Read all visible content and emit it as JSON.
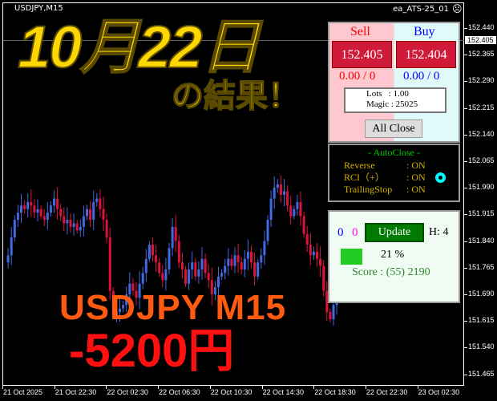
{
  "header": {
    "symbol": "USDJPY,M15",
    "ea_name": "ea_ATS-25_01",
    "ea_status_icon": "sad-face-icon"
  },
  "overlay": {
    "date": "10月22日",
    "result": "の結果！",
    "pair": "USDJPY M15",
    "pnl": "-5200円"
  },
  "price_axis": {
    "labels": [
      "152.440",
      "152.365",
      "152.290",
      "152.215",
      "152.140",
      "152.065",
      "151.990",
      "151.915",
      "151.840",
      "151.765",
      "151.690",
      "151.615",
      "151.540",
      "151.465"
    ],
    "current_price": "152.405"
  },
  "time_axis": {
    "labels": [
      "21 Oct 2025",
      "21 Oct 22:30",
      "22 Oct 02:30",
      "22 Oct 06:30",
      "22 Oct 10:30",
      "22 Oct 14:30",
      "22 Oct 18:30",
      "22 Oct 22:30",
      "23 Oct 02:30"
    ]
  },
  "trade_panel": {
    "sell_label": "Sell",
    "buy_label": "Buy",
    "sell_price": "152.405",
    "buy_price": "152.404",
    "sell_position": "0.00 / 0",
    "buy_position": "0.00 / 0",
    "lots": "Lots   : 1.00",
    "magic": "Magic : 25025",
    "all_close": "All Close"
  },
  "auto_close": {
    "title": "- AutoClose -",
    "rows": [
      {
        "label": "Reverse",
        "value": ": ON"
      },
      {
        "label": "RCI（+）",
        "value": ": ON"
      },
      {
        "label": "TrailingStop",
        "value": ": ON"
      }
    ]
  },
  "score_panel": {
    "count_a": "0",
    "count_b": "0",
    "update": "Update",
    "h": "H: 4",
    "progress_text": "21 %",
    "progress": 0.21,
    "score": "Score : (55) 2190"
  },
  "colors": {
    "bull": "#4169e1",
    "bear": "#dc143c",
    "overlay_yellow": "#ffd700",
    "overlay_orange": "#ff5a10",
    "overlay_red": "#ff1010"
  },
  "chart_data": {
    "type": "candlestick",
    "closes": [
      151.78,
      151.8,
      151.85,
      151.9,
      151.92,
      151.94,
      151.93,
      151.95,
      151.94,
      151.92,
      151.93,
      151.91,
      151.9,
      151.92,
      151.94,
      151.96,
      151.93,
      151.91,
      151.89,
      151.9,
      151.88,
      151.89,
      151.87,
      151.88,
      151.91,
      151.93,
      151.9,
      151.95,
      151.96,
      151.93,
      151.9,
      151.85,
      151.7,
      151.63,
      151.64,
      151.65,
      151.66,
      151.69,
      151.72,
      151.7,
      151.68,
      151.72,
      151.75,
      151.79,
      151.83,
      151.8,
      151.78,
      151.75,
      151.73,
      151.76,
      151.82,
      151.88,
      151.84,
      151.78,
      151.76,
      151.72,
      151.76,
      151.78,
      151.74,
      151.76,
      151.79,
      151.75,
      151.73,
      151.69,
      151.71,
      151.74,
      151.75,
      151.77,
      151.79,
      151.77,
      151.8,
      151.78,
      151.76,
      151.79,
      151.81,
      151.78,
      151.74,
      151.78,
      151.8,
      151.84,
      151.9,
      151.96,
      151.99,
      152.0,
      151.97,
      151.98,
      151.94,
      151.91,
      151.93,
      151.95,
      151.91,
      151.86,
      151.83,
      151.8,
      151.81,
      151.79,
      151.77,
      151.7,
      151.64,
      151.62,
      151.66,
      151.68
    ]
  }
}
